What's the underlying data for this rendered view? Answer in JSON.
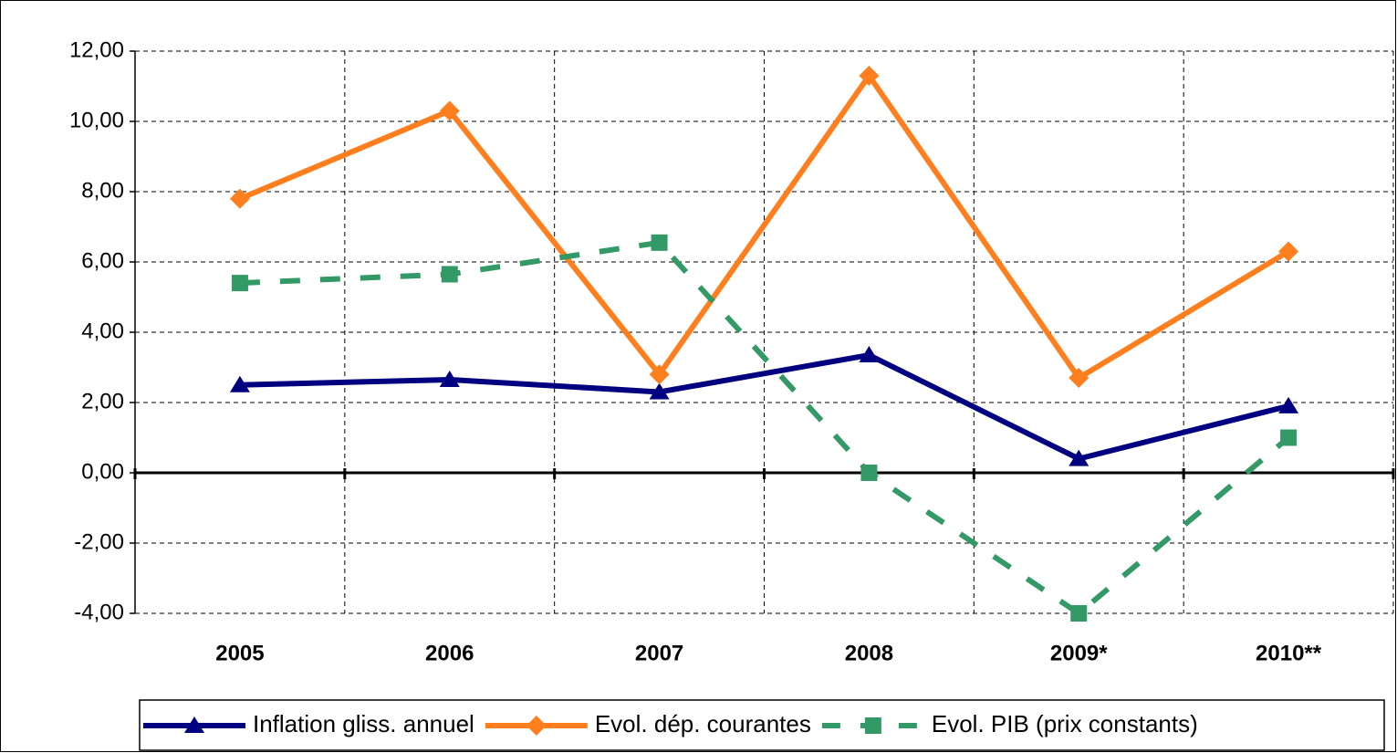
{
  "chart_data": {
    "type": "line",
    "categories": [
      "2005",
      "2006",
      "2007",
      "2008",
      "2009*",
      "2010**"
    ],
    "series": [
      {
        "name": "Inflation gliss. annuel",
        "color": "#000080",
        "marker": "triangle",
        "line_style": "solid",
        "values": [
          2.5,
          2.65,
          2.3,
          3.35,
          0.4,
          1.9
        ]
      },
      {
        "name": "Evol. dép. courantes",
        "color": "#ff7f1f",
        "marker": "diamond",
        "line_style": "solid",
        "values": [
          7.8,
          10.3,
          2.8,
          11.3,
          2.7,
          6.3
        ]
      },
      {
        "name": "Evol. PIB (prix constants)",
        "color": "#339966",
        "marker": "square",
        "line_style": "dashed",
        "values": [
          5.4,
          5.65,
          6.55,
          0.0,
          -4.0,
          1.0
        ]
      }
    ],
    "ylim": [
      -4,
      12
    ],
    "yticks": [
      {
        "value": -4,
        "label": "-4,00"
      },
      {
        "value": -2,
        "label": "-2,00"
      },
      {
        "value": 0,
        "label": "0,00"
      },
      {
        "value": 2,
        "label": "2,00"
      },
      {
        "value": 4,
        "label": "4,00"
      },
      {
        "value": 6,
        "label": "6,00"
      },
      {
        "value": 8,
        "label": "8,00"
      },
      {
        "value": 10,
        "label": "10,00"
      },
      {
        "value": 12,
        "label": "12,00"
      }
    ],
    "grid": true,
    "legend": "bottom"
  }
}
